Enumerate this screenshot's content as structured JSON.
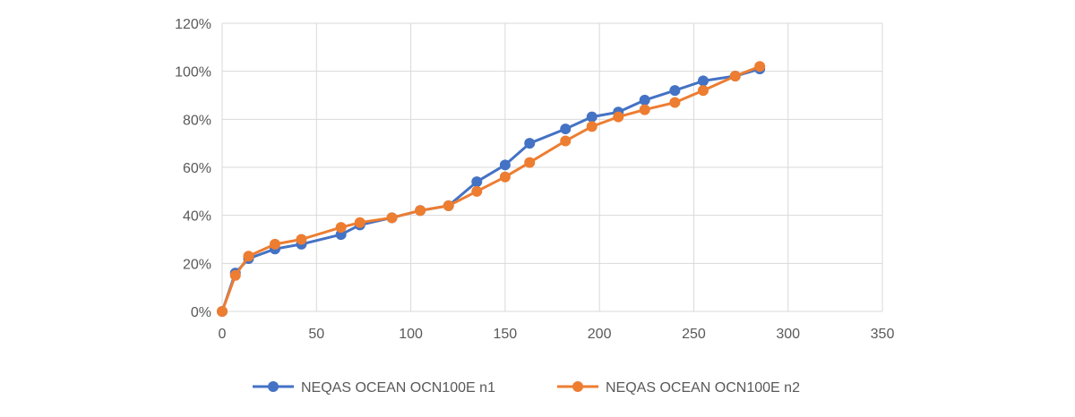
{
  "chart_data": {
    "type": "line",
    "title": "",
    "xlabel": "",
    "ylabel": "",
    "xlim": [
      0,
      350
    ],
    "ylim": [
      0,
      1.2
    ],
    "x_ticks": [
      0,
      50,
      100,
      150,
      200,
      250,
      300,
      350
    ],
    "x_tick_labels": [
      "0",
      "50",
      "100",
      "150",
      "200",
      "250",
      "300",
      "350"
    ],
    "y_ticks": [
      0,
      0.2,
      0.4,
      0.6,
      0.8,
      1.0,
      1.2
    ],
    "y_tick_labels": [
      "0%",
      "20%",
      "40%",
      "60%",
      "80%",
      "100%",
      "120%"
    ],
    "grid": true,
    "legend_position": "bottom",
    "series": [
      {
        "name": "NEQAS OCEAN OCN100E n1",
        "color": "#4472C4",
        "x": [
          0,
          7,
          14,
          28,
          42,
          63,
          73,
          90,
          105,
          120,
          135,
          150,
          163,
          182,
          196,
          210,
          224,
          240,
          255,
          272,
          285
        ],
        "y": [
          0.0,
          0.16,
          0.22,
          0.26,
          0.28,
          0.32,
          0.36,
          0.39,
          0.42,
          0.44,
          0.54,
          0.61,
          0.7,
          0.76,
          0.81,
          0.83,
          0.88,
          0.92,
          0.96,
          0.98,
          1.01
        ]
      },
      {
        "name": "NEQAS OCEAN OCN100E n2",
        "color": "#ED7D31",
        "x": [
          0,
          7,
          14,
          28,
          42,
          63,
          73,
          90,
          105,
          120,
          135,
          150,
          163,
          182,
          196,
          210,
          224,
          240,
          255,
          272,
          285
        ],
        "y": [
          0.0,
          0.15,
          0.23,
          0.28,
          0.3,
          0.35,
          0.37,
          0.39,
          0.42,
          0.44,
          0.5,
          0.56,
          0.62,
          0.71,
          0.77,
          0.81,
          0.84,
          0.87,
          0.92,
          0.98,
          1.02
        ]
      }
    ]
  }
}
